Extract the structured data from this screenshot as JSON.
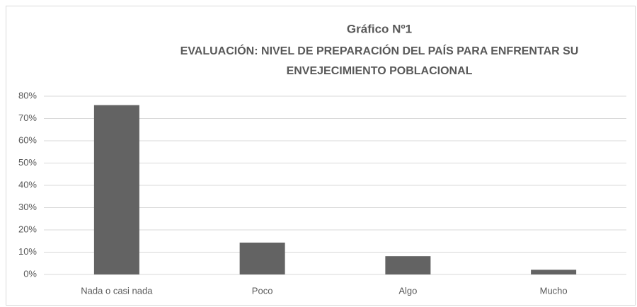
{
  "chart_data": {
    "type": "bar",
    "title": "Gráfico Nº1",
    "subtitle": [
      "EVALUACIÓN: NIVEL DE PREPARACIÓN DEL PAÍS PARA ENFRENTAR SU",
      "ENVEJECIMIENTO POBLACIONAL"
    ],
    "categories": [
      "Nada o casi nada",
      "Poco",
      "Algo",
      "Mucho"
    ],
    "values": [
      76,
      14.3,
      8.2,
      2.1
    ],
    "color": "#636363",
    "ylim": [
      0,
      80
    ],
    "yticks": [
      {
        "value": 0,
        "label": "0%"
      },
      {
        "value": 10,
        "label": "10%"
      },
      {
        "value": 20,
        "label": "20%"
      },
      {
        "value": 30,
        "label": "30%"
      },
      {
        "value": 40,
        "label": "40%"
      },
      {
        "value": 50,
        "label": "50%"
      },
      {
        "value": 60,
        "label": "60%"
      },
      {
        "value": 70,
        "label": "70%"
      },
      {
        "value": 80,
        "label": "80%"
      }
    ],
    "grid": true
  }
}
